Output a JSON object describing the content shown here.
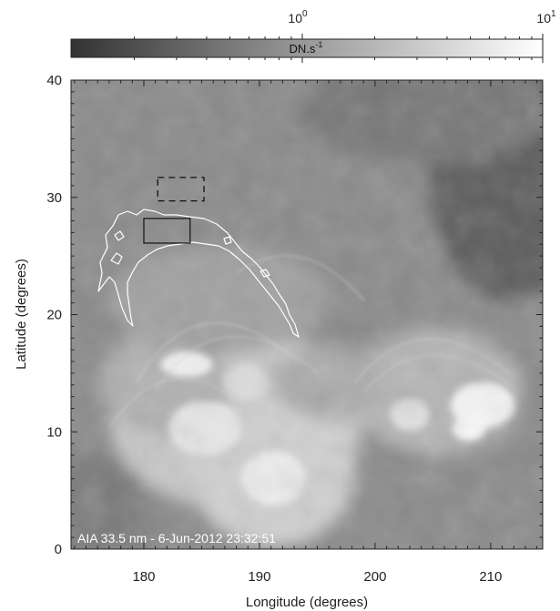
{
  "colorbar": {
    "unit_label": "DN.s",
    "unit_exponent": "-1",
    "ticks": [
      {
        "base": "10",
        "exponent": "0",
        "position": "mid"
      },
      {
        "base": "10",
        "exponent": "1",
        "position": "end"
      }
    ],
    "gradient": [
      "#333333",
      "#ffffff"
    ]
  },
  "image_panel": {
    "caption": "AIA 33.5 nm -  6-Jun-2012 23:32:51",
    "x_axis": {
      "label": "Longitude (degrees)",
      "range": [
        173.7,
        214.5
      ],
      "ticks": [
        180,
        190,
        200,
        210
      ],
      "tick_labels": [
        "180",
        "190",
        "200",
        "210"
      ]
    },
    "y_axis": {
      "label": "Latitude (degrees)",
      "range": [
        0,
        40
      ],
      "ticks": [
        0,
        10,
        20,
        30,
        40
      ],
      "tick_labels": [
        "0",
        "10",
        "20",
        "30",
        "40"
      ]
    },
    "overlays": {
      "solid_box": {
        "lon": [
          180,
          184
        ],
        "lat": [
          26.1,
          28.2
        ],
        "color": "#111111"
      },
      "dashed_box": {
        "lon": [
          181.2,
          185.2
        ],
        "lat": [
          29.7,
          31.7
        ],
        "color": "#111111"
      },
      "contour_color": "#ffffff"
    }
  }
}
